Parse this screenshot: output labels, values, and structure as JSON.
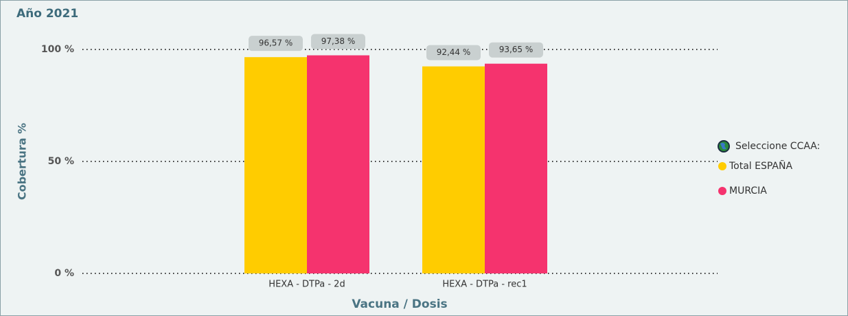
{
  "chart_data": {
    "type": "bar",
    "title": "Año 2021",
    "y_label": "Cobertura %",
    "x_label": "Vacuna / Dosis",
    "categories": [
      "HEXA - DTPa - 2d",
      "HEXA - DTPa - rec1"
    ],
    "series": [
      {
        "name": "Total ESPAÑA",
        "color": "#FFCC00",
        "values": [
          96.57,
          92.44
        ],
        "value_labels": [
          "96,57 %",
          "92,44 %"
        ]
      },
      {
        "name": "MURCIA",
        "color": "#F5336E",
        "values": [
          97.38,
          93.65
        ],
        "value_labels": [
          "97,38 %",
          "93,65 %"
        ]
      }
    ],
    "legend_title": "Seleccione CCAA:",
    "legend_position": "right",
    "ylim": [
      0,
      100
    ],
    "yticks": [
      {
        "value": 0,
        "label": "0 %"
      },
      {
        "value": 50,
        "label": "50 %"
      },
      {
        "value": 100,
        "label": "100 %"
      }
    ],
    "grid": true
  }
}
